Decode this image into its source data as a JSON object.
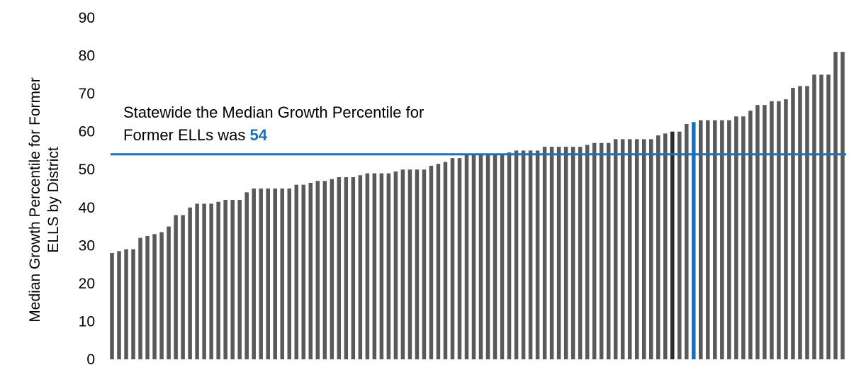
{
  "chart_data": {
    "type": "bar",
    "ylabel_line1": "Median Growth Percentile for Former",
    "ylabel_line2": "ELLS by District",
    "ylim": [
      0,
      90
    ],
    "yticks": [
      "0",
      "10",
      "20",
      "30",
      "40",
      "50",
      "60",
      "70",
      "80",
      "90"
    ],
    "grid": false,
    "legend": "none",
    "bar_color": "#595959",
    "highlight_color": "#1f6fb8",
    "dark_bar_color": "#2b2b2b",
    "highlight_bar_index": 82,
    "dark_bar_index": 79,
    "reference_line": {
      "value": 54
    },
    "annotation": {
      "line1": "Statewide the Median Growth Percentile for",
      "line2_prefix": "Former ELLs was ",
      "line2_value": "54"
    },
    "values": [
      81,
      81,
      75,
      75,
      75,
      72,
      72,
      71.5,
      68.5,
      68,
      68,
      67,
      67,
      65.5,
      64,
      64,
      63,
      63,
      63,
      63,
      63,
      62.5,
      62,
      60,
      60,
      59.5,
      59,
      58,
      58,
      58,
      58,
      58,
      58,
      57,
      57,
      57,
      56.5,
      56,
      56,
      56,
      56,
      56,
      56,
      55,
      55,
      55,
      55,
      54.5,
      54,
      54,
      54,
      54,
      54,
      54,
      53,
      53,
      52,
      51.5,
      51,
      50,
      50,
      50,
      50,
      49.5,
      49,
      49,
      49,
      49,
      48.5,
      48,
      48,
      48,
      47.5,
      47,
      47,
      46.5,
      46,
      46,
      45,
      45,
      45,
      45,
      45,
      45,
      44,
      42,
      42,
      42,
      41.5,
      41,
      41,
      41,
      40,
      38,
      38,
      35,
      33.5,
      33,
      32.5,
      32,
      29,
      29,
      28.5,
      28
    ]
  }
}
